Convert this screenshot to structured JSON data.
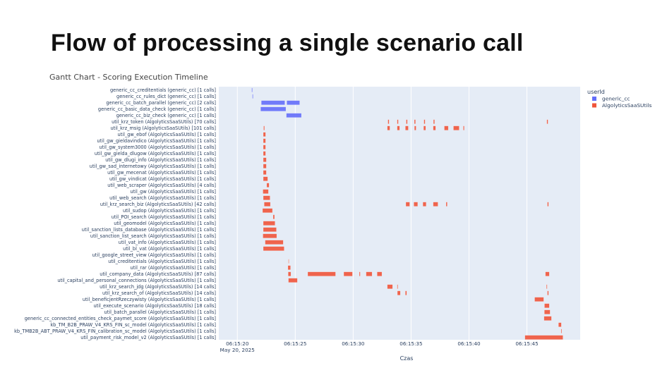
{
  "slide": {
    "title": "Flow of processing a single scenario call"
  },
  "chart_data": {
    "type": "gantt",
    "title": "Gantt Chart - Scoring Execution Timeline",
    "xlabel": "Czas",
    "ylabel": "",
    "x_range": [
      "06:15:18.4",
      "06:15:49.6"
    ],
    "x_ticks": [
      "06:15:20",
      "06:15:25",
      "06:15:30",
      "06:15:35",
      "06:15:40",
      "06:15:45"
    ],
    "x_tick_date": "May 20, 2025",
    "grid": true,
    "legend": {
      "title": "userId",
      "position": "top-right",
      "entries": [
        {
          "name": "generic_cc",
          "color": "#636efa"
        },
        {
          "name": "AlgolyticsSaaSUtils",
          "color": "#ef553b"
        }
      ]
    },
    "rows": [
      {
        "label": "generic_cc_creditentials (generic_cc) [1 calls]",
        "group": "generic_cc",
        "bars": [
          [
            "06:15:21.24",
            "06:15:21.30"
          ]
        ]
      },
      {
        "label": "generic_cc_rules_dict (generic_cc) [1 calls]",
        "group": "generic_cc",
        "bars": [
          [
            "06:15:21.30",
            "06:15:21.36"
          ]
        ]
      },
      {
        "label": "generic_cc_batch_parallel (generic_cc) [2 calls]",
        "group": "generic_cc",
        "bars": [
          [
            "06:15:22.07",
            "06:15:24.10"
          ],
          [
            "06:15:24.27",
            "06:15:25.38"
          ]
        ]
      },
      {
        "label": "generic_cc_basic_data_check (generic_cc) [1 calls]",
        "group": "generic_cc",
        "bars": [
          [
            "06:15:22.01",
            "06:15:24.19"
          ]
        ]
      },
      {
        "label": "generic_cc_biz_check (generic_cc) [1 calls]",
        "group": "generic_cc",
        "bars": [
          [
            "06:15:24.23",
            "06:15:25.53"
          ]
        ]
      },
      {
        "label": "util_krz_token (AlgolyticsSaaSUtils) [70 calls]",
        "group": "AlgolyticsSaaSUtils",
        "bars": [
          [
            "06:15:33.00",
            "06:15:33.10"
          ],
          [
            "06:15:33.80",
            "06:15:33.90"
          ],
          [
            "06:15:34.58",
            "06:15:34.68"
          ],
          [
            "06:15:35.28",
            "06:15:35.38"
          ],
          [
            "06:15:36.11",
            "06:15:36.21"
          ],
          [
            "06:15:36.93",
            "06:15:37.03"
          ],
          [
            "06:15:46.72",
            "06:15:46.82"
          ]
        ]
      },
      {
        "label": "util_krz_msig (AlgolyticsSaaSUtils) [101 calls]",
        "group": "AlgolyticsSaaSUtils",
        "bars": [
          [
            "06:15:22.27",
            "06:15:22.35"
          ],
          [
            "06:15:32.95",
            "06:15:33.17"
          ],
          [
            "06:15:33.80",
            "06:15:34.01"
          ],
          [
            "06:15:34.51",
            "06:15:34.76"
          ],
          [
            "06:15:35.29",
            "06:15:35.43"
          ],
          [
            "06:15:36.08",
            "06:15:36.26"
          ],
          [
            "06:15:36.91",
            "06:15:37.12"
          ],
          [
            "06:15:37.87",
            "06:15:38.21"
          ],
          [
            "06:15:38.66",
            "06:15:39.15"
          ],
          [
            "06:15:39.51",
            "06:15:39.59"
          ]
        ]
      },
      {
        "label": "util_gw_ebof (AlgolyticsSaaSUtils) [1 calls]",
        "group": "AlgolyticsSaaSUtils",
        "bars": [
          [
            "06:15:22.24",
            "06:15:22.44"
          ]
        ]
      },
      {
        "label": "util_gw_gieldavindico (AlgolyticsSaaSUtils) [1 calls]",
        "group": "AlgolyticsSaaSUtils",
        "bars": [
          [
            "06:15:22.24",
            "06:15:22.44"
          ]
        ]
      },
      {
        "label": "util_gw_system3000 (AlgolyticsSaaSUtils) [1 calls]",
        "group": "AlgolyticsSaaSUtils",
        "bars": [
          [
            "06:15:22.24",
            "06:15:22.44"
          ]
        ]
      },
      {
        "label": "util_gw_gielda_dlugow (AlgolyticsSaaSUtils) [1 calls]",
        "group": "AlgolyticsSaaSUtils",
        "bars": [
          [
            "06:15:22.24",
            "06:15:22.44"
          ]
        ]
      },
      {
        "label": "util_gw_dlugi_info (AlgolyticsSaaSUtils) [1 calls]",
        "group": "AlgolyticsSaaSUtils",
        "bars": [
          [
            "06:15:22.24",
            "06:15:22.50"
          ]
        ]
      },
      {
        "label": "util_gw_sad_internetowy (AlgolyticsSaaSUtils) [1 calls]",
        "group": "AlgolyticsSaaSUtils",
        "bars": [
          [
            "06:15:22.24",
            "06:15:22.50"
          ]
        ]
      },
      {
        "label": "util_gw_mecenat (AlgolyticsSaaSUtils) [1 calls]",
        "group": "AlgolyticsSaaSUtils",
        "bars": [
          [
            "06:15:22.24",
            "06:15:22.50"
          ]
        ]
      },
      {
        "label": "util_gw_vindicat (AlgolyticsSaaSUtils) [1 calls]",
        "group": "AlgolyticsSaaSUtils",
        "bars": [
          [
            "06:15:22.24",
            "06:15:22.62"
          ]
        ]
      },
      {
        "label": "util_web_scraper (AlgolyticsSaaSUtils) [4 calls]",
        "group": "AlgolyticsSaaSUtils",
        "bars": [
          [
            "06:15:22.54",
            "06:15:22.74"
          ]
        ]
      },
      {
        "label": "util_gw (AlgolyticsSaaSUtils) [1 calls]",
        "group": "AlgolyticsSaaSUtils",
        "bars": [
          [
            "06:15:22.21",
            "06:15:22.68"
          ]
        ]
      },
      {
        "label": "util_web_search (AlgolyticsSaaSUtils) [1 calls]",
        "group": "AlgolyticsSaaSUtils",
        "bars": [
          [
            "06:15:22.24",
            "06:15:22.82"
          ]
        ]
      },
      {
        "label": "util_krz_search_biz (AlgolyticsSaaSUtils) [42 calls]",
        "group": "AlgolyticsSaaSUtils",
        "bars": [
          [
            "06:15:22.32",
            "06:15:22.85"
          ],
          [
            "06:15:34.55",
            "06:15:34.88"
          ],
          [
            "06:15:35.24",
            "06:15:35.57"
          ],
          [
            "06:15:36.02",
            "06:15:36.30"
          ],
          [
            "06:15:36.91",
            "06:15:37.32"
          ],
          [
            "06:15:38.02",
            "06:15:38.12"
          ],
          [
            "06:15:46.77",
            "06:15:46.87"
          ]
        ]
      },
      {
        "label": "util_sudop (AlgolyticsSaaSUtils) [1 calls]",
        "group": "AlgolyticsSaaSUtils",
        "bars": [
          [
            "06:15:22.18",
            "06:15:23.03"
          ]
        ]
      },
      {
        "label": "util_POI_search (AlgolyticsSaaSUtils) [1 calls]",
        "group": "AlgolyticsSaaSUtils",
        "bars": [
          [
            "06:15:23.09",
            "06:15:23.21"
          ]
        ]
      },
      {
        "label": "util_geomodel (AlgolyticsSaaSUtils) [1 calls]",
        "group": "AlgolyticsSaaSUtils",
        "bars": [
          [
            "06:15:22.24",
            "06:15:23.25"
          ]
        ]
      },
      {
        "label": "util_sanction_lists_database (AlgolyticsSaaSUtils) [1 calls]",
        "group": "AlgolyticsSaaSUtils",
        "bars": [
          [
            "06:15:22.24",
            "06:15:23.37"
          ]
        ]
      },
      {
        "label": "util_sanction_list_search (AlgolyticsSaaSUtils) [1 calls]",
        "group": "AlgolyticsSaaSUtils",
        "bars": [
          [
            "06:15:22.21",
            "06:15:23.40"
          ]
        ]
      },
      {
        "label": "util_vat_info (AlgolyticsSaaSUtils) [1 calls]",
        "group": "AlgolyticsSaaSUtils",
        "bars": [
          [
            "06:15:22.40",
            "06:15:23.96"
          ]
        ]
      },
      {
        "label": "util_bl_vat (AlgolyticsSaaSUtils) [1 calls]",
        "group": "AlgolyticsSaaSUtils",
        "bars": [
          [
            "06:15:22.24",
            "06:15:24.04"
          ]
        ]
      },
      {
        "label": "util_google_street_view (AlgolyticsSaaSUtils) [1 calls]",
        "group": "AlgolyticsSaaSUtils",
        "bars": []
      },
      {
        "label": "util_creditentials (AlgolyticsSaaSUtils) [1 calls]",
        "group": "AlgolyticsSaaSUtils",
        "bars": [
          [
            "06:15:24.41",
            "06:15:24.44"
          ]
        ]
      },
      {
        "label": "util_rar (AlgolyticsSaaSUtils) [1 calls]",
        "group": "AlgolyticsSaaSUtils",
        "bars": [
          [
            "06:15:24.37",
            "06:15:24.59"
          ]
        ]
      },
      {
        "label": "util_company_data (AlgolyticsSaaSUtils) [87 calls]",
        "group": "AlgolyticsSaaSUtils",
        "bars": [
          [
            "06:15:24.39",
            "06:15:24.62"
          ],
          [
            "06:15:26.08",
            "06:15:28.48"
          ],
          [
            "06:15:29.19",
            "06:15:29.94"
          ],
          [
            "06:15:30.53",
            "06:15:30.61"
          ],
          [
            "06:15:31.12",
            "06:15:31.63"
          ],
          [
            "06:15:32.07",
            "06:15:32.48"
          ],
          [
            "06:15:46.60",
            "06:15:46.93"
          ]
        ]
      },
      {
        "label": "util_capital_and_personal_connections (AlgolyticsSaaSUtils) [1 calls]",
        "group": "AlgolyticsSaaSUtils",
        "bars": [
          [
            "06:15:24.41",
            "06:15:25.18"
          ]
        ]
      },
      {
        "label": "util_krz_search_jdg (AlgolyticsSaaSUtils) [14 calls]",
        "group": "AlgolyticsSaaSUtils",
        "bars": [
          [
            "06:15:32.95",
            "06:15:33.40"
          ],
          [
            "06:15:33.80",
            "06:15:33.86"
          ],
          [
            "06:15:46.69",
            "06:15:46.75"
          ]
        ]
      },
      {
        "label": "util_krz_search_of (AlgolyticsSaaSUtils) [14 calls]",
        "group": "AlgolyticsSaaSUtils",
        "bars": [
          [
            "06:15:33.82",
            "06:15:34.07"
          ],
          [
            "06:15:34.51",
            "06:15:34.62"
          ],
          [
            "06:15:46.77",
            "06:15:46.87"
          ]
        ]
      },
      {
        "label": "util_beneficjentRzeczywisty (AlgolyticsSaaSUtils) [1 calls]",
        "group": "AlgolyticsSaaSUtils",
        "bars": [
          [
            "06:15:45.67",
            "06:15:46.45"
          ]
        ]
      },
      {
        "label": "util_execute_scenario (AlgolyticsSaaSUtils) [18 calls]",
        "group": "AlgolyticsSaaSUtils",
        "bars": [
          [
            "06:15:46.52",
            "06:15:46.93"
          ]
        ]
      },
      {
        "label": "util_batch_parallel (AlgolyticsSaaSUtils) [1 calls]",
        "group": "AlgolyticsSaaSUtils",
        "bars": [
          [
            "06:15:46.51",
            "06:15:47.00"
          ]
        ]
      },
      {
        "label": "generic_cc_connected_entities_check_paymet_score (AlgolyticsSaaSUtils) [1 calls]",
        "group": "AlgolyticsSaaSUtils",
        "bars": [
          [
            "06:15:46.48",
            "06:15:47.12"
          ]
        ]
      },
      {
        "label": "kb_TM_B2B_PRAW_V4_KRS_FIN_sc_model (AlgolyticsSaaSUtils) [1 calls]",
        "group": "AlgolyticsSaaSUtils",
        "bars": [
          [
            "06:15:47.73",
            "06:15:47.97"
          ]
        ]
      },
      {
        "label": "kb_TMB2B_ABT_PRAW_V4_KRS_FIN_calibration_sc_model (AlgolyticsSaaSUtils) [1 calls]",
        "group": "AlgolyticsSaaSUtils",
        "bars": [
          [
            "06:15:47.95",
            "06:15:48.01"
          ]
        ]
      },
      {
        "label": "util_payment_risk_model_v2 (AlgolyticsSaaSUtils) [1 calls]",
        "group": "AlgolyticsSaaSUtils",
        "bars": [
          [
            "06:15:44.83",
            "06:15:48.11"
          ]
        ]
      }
    ]
  }
}
